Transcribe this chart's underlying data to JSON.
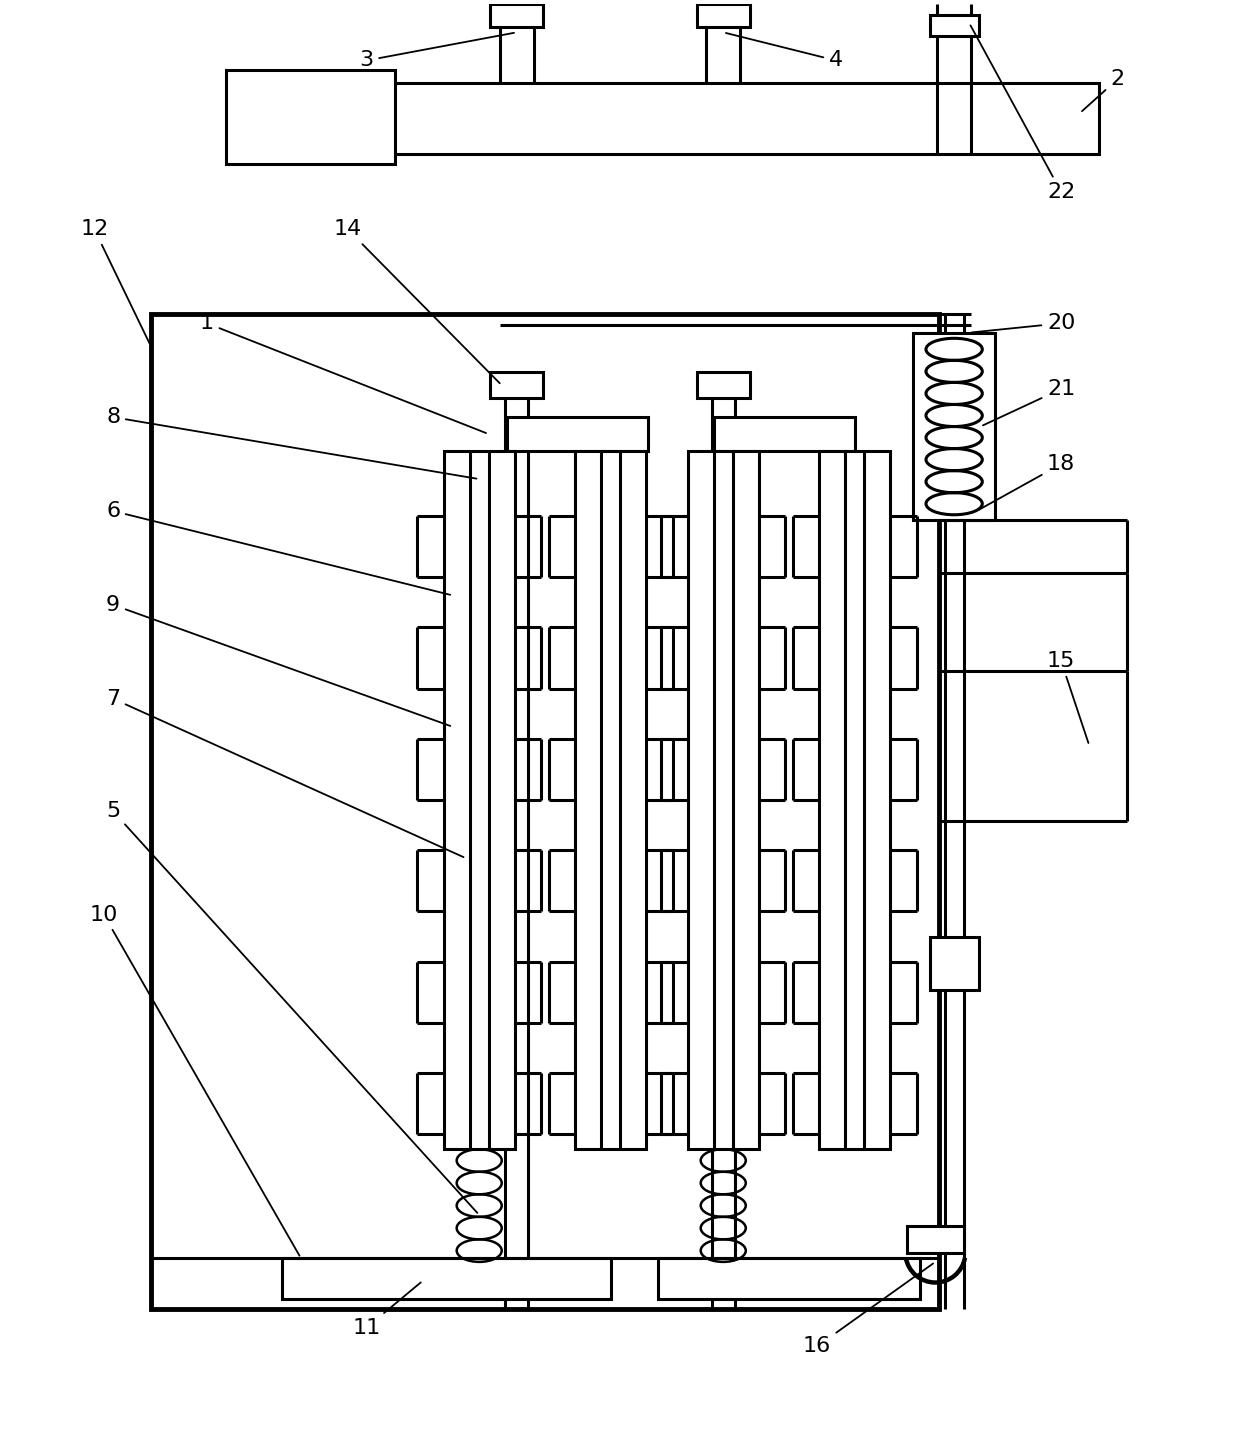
{
  "bg": "#ffffff",
  "lc": "#000000",
  "lw": 2.2,
  "tlw": 3.5,
  "fw": 12.4,
  "fh": 14.35,
  "dpi": 100
}
